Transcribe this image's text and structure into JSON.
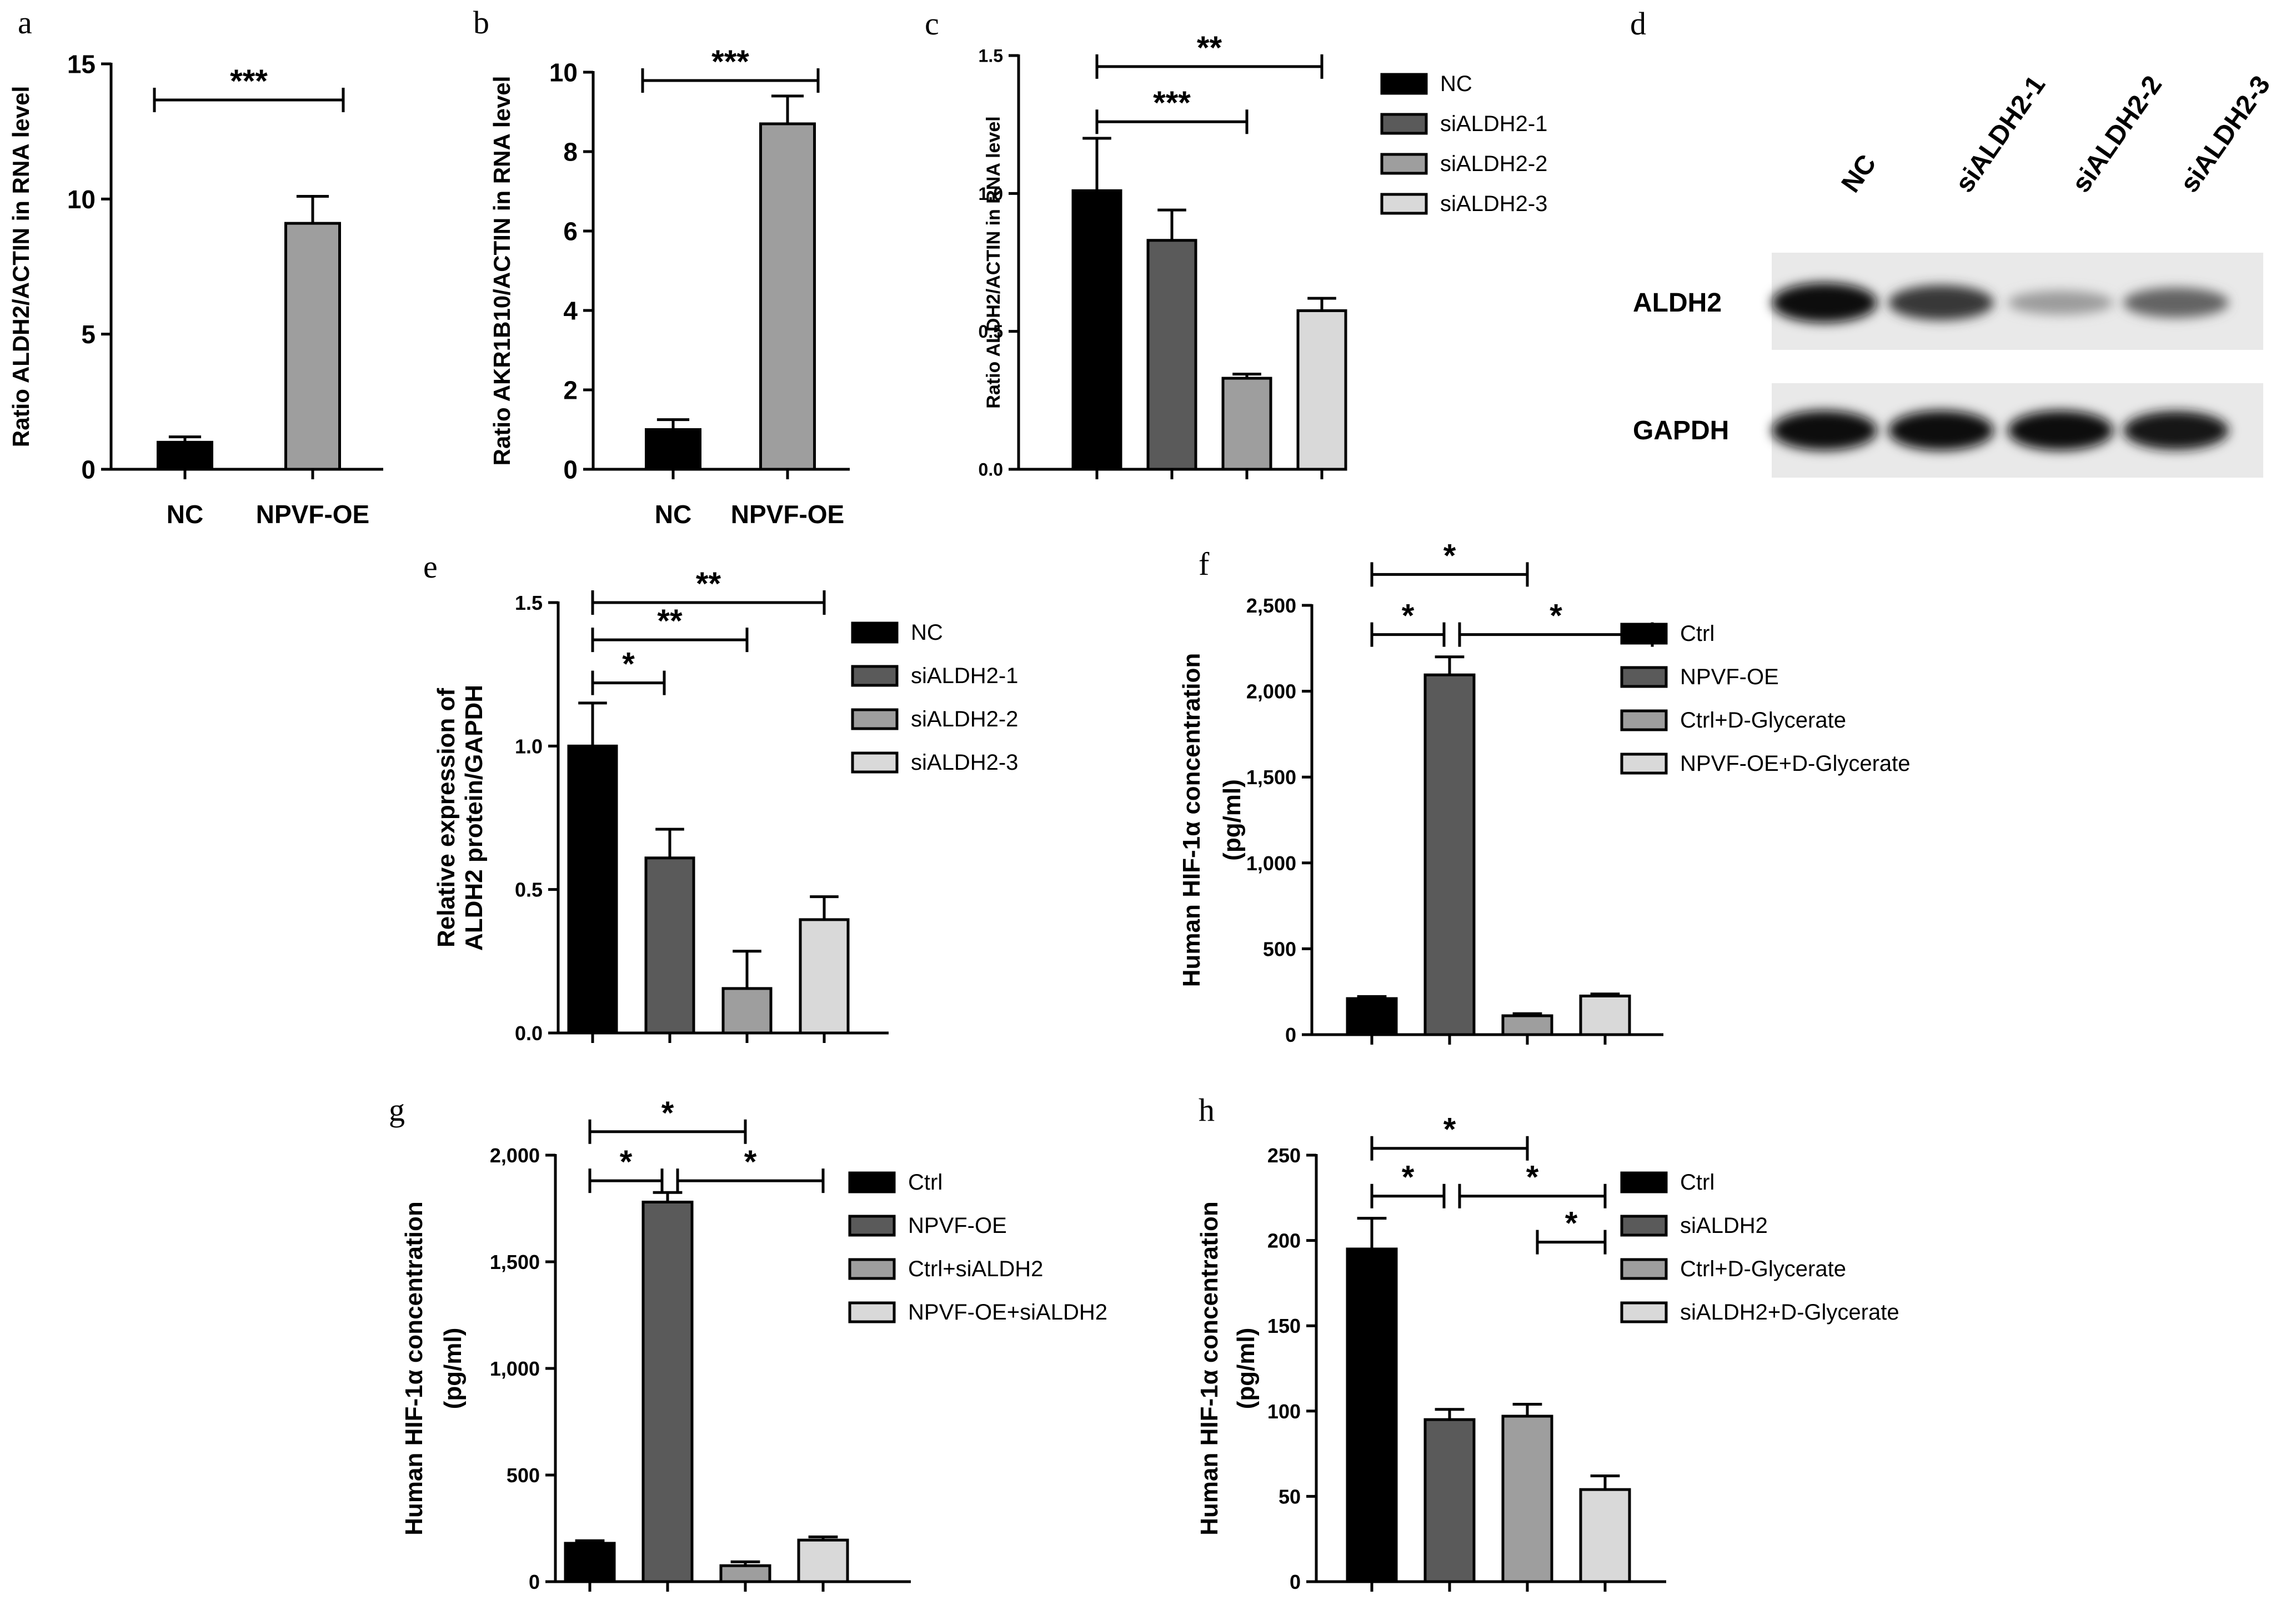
{
  "figure": {
    "colors": {
      "black": "#000000",
      "dark_gray": "#5a5a5a",
      "mid_gray": "#9e9e9e",
      "light_gray": "#d9d9d9"
    }
  },
  "chart_data": [
    {
      "panel": "a",
      "type": "bar",
      "categories": [
        "NC",
        "NPVF-OE"
      ],
      "values": [
        1.0,
        9.1
      ],
      "errors": [
        0.2,
        1.0
      ],
      "colors": [
        "#000000",
        "#9e9e9e"
      ],
      "ylabel": "Ratio ALDH2/ACTIN in RNA level",
      "ylim": [
        0,
        15
      ],
      "yticks": [
        "0",
        "5",
        "10",
        "15"
      ],
      "yticks_values": [
        0,
        5,
        10,
        15
      ],
      "xtick_labels": true,
      "brackets": [
        {
          "from": 0,
          "to": 1,
          "label": "***"
        }
      ]
    },
    {
      "panel": "b",
      "type": "bar",
      "categories": [
        "NC",
        "NPVF-OE"
      ],
      "values": [
        1.0,
        8.7
      ],
      "errors": [
        0.25,
        0.7
      ],
      "colors": [
        "#000000",
        "#9e9e9e"
      ],
      "ylabel": "Ratio AKR1B10/ACTIN in RNA level",
      "ylim": [
        0,
        10
      ],
      "yticks": [
        "0",
        "2",
        "4",
        "6",
        "8",
        "10"
      ],
      "yticks_values": [
        0,
        2,
        4,
        6,
        8,
        10
      ],
      "xtick_labels": true,
      "brackets": [
        {
          "from": 0,
          "to": 1,
          "label": "***"
        }
      ]
    },
    {
      "panel": "c",
      "type": "bar",
      "categories": [
        "NC",
        "siALDH2-1",
        "siALDH2-2",
        "siALDH2-3"
      ],
      "values": [
        1.01,
        0.83,
        0.33,
        0.575
      ],
      "errors": [
        0.19,
        0.11,
        0.015,
        0.045
      ],
      "colors": [
        "#000000",
        "#5a5a5a",
        "#9e9e9e",
        "#d9d9d9"
      ],
      "ylabel": "Ratio ALDH2/ACTIN in RNA level",
      "ylim": [
        0,
        1.5
      ],
      "yticks": [
        "0.0",
        "0.5",
        "1.0",
        "1.5"
      ],
      "yticks_values": [
        0,
        0.5,
        1.0,
        1.5
      ],
      "legend": [
        "NC",
        "siALDH2-1",
        "siALDH2-2",
        "siALDH2-3"
      ],
      "legend_position": "right",
      "brackets": [
        {
          "from": 0,
          "to": 3,
          "label": "**",
          "level": 1.46
        },
        {
          "from": 0,
          "to": 2,
          "label": "***",
          "level": 1.26
        }
      ]
    },
    {
      "panel": "e",
      "type": "bar",
      "categories": [
        "NC",
        "siALDH2-1",
        "siALDH2-2",
        "siALDH2-3"
      ],
      "values": [
        1.0,
        0.61,
        0.155,
        0.395
      ],
      "errors": [
        0.15,
        0.1,
        0.13,
        0.08
      ],
      "colors": [
        "#000000",
        "#5a5a5a",
        "#9e9e9e",
        "#d9d9d9"
      ],
      "ylabel": "Relative expression of ALDH2 protein/GAPDH",
      "ylabel_lines": [
        "Relative expression of",
        "ALDH2 protein/GAPDH"
      ],
      "ylim": [
        0,
        1.5
      ],
      "yticks": [
        "0.0",
        "0.5",
        "1.0",
        "1.5"
      ],
      "yticks_values": [
        0,
        0.5,
        1.0,
        1.5
      ],
      "legend": [
        "NC",
        "siALDH2-1",
        "siALDH2-2",
        "siALDH2-3"
      ],
      "legend_position": "right",
      "brackets": [
        {
          "from": 0,
          "to": 3,
          "label": "**",
          "level": 1.5
        },
        {
          "from": 0,
          "to": 2,
          "label": "**",
          "level": 1.37
        },
        {
          "from": 0,
          "to": 1,
          "label": "*",
          "level": 1.22
        }
      ]
    },
    {
      "panel": "f",
      "type": "bar",
      "categories": [
        "Ctrl",
        "NPVF-OE",
        "Ctrl+D-Glycerate",
        "NPVF-OE+D-Glycerate"
      ],
      "values": [
        210,
        2095,
        110,
        225
      ],
      "errors": [
        12,
        105,
        12,
        12
      ],
      "colors": [
        "#000000",
        "#5a5a5a",
        "#9e9e9e",
        "#d9d9d9"
      ],
      "ylabel": "Human HIF-1α concentration (pg/ml)",
      "ylabel_lines": [
        "Human HIF-1α concentration",
        "(pg/ml)"
      ],
      "ylim": [
        0,
        2500
      ],
      "yticks": [
        "0",
        "500",
        "1,000",
        "1,500",
        "2,000",
        "2,500"
      ],
      "yticks_values": [
        0,
        500,
        1000,
        1500,
        2000,
        2500
      ],
      "legend": [
        "Ctrl",
        "NPVF-OE",
        "Ctrl+D-Glycerate",
        "NPVF-OE+D-Glycerate"
      ],
      "legend_position": "right",
      "brackets": [
        {
          "from": 0,
          "to": 2,
          "label": "*",
          "level": 2680
        },
        {
          "from": 0,
          "to": 1,
          "label": "*",
          "level": 2330
        },
        {
          "from": 1,
          "to": 4,
          "label": "*",
          "level": 2330
        }
      ]
    },
    {
      "panel": "g",
      "type": "bar",
      "categories": [
        "Ctrl",
        "NPVF-OE",
        "Ctrl+siALDH2",
        "NPVF-OE+siALDH2"
      ],
      "values": [
        180,
        1780,
        75,
        195
      ],
      "errors": [
        12,
        45,
        18,
        15
      ],
      "colors": [
        "#000000",
        "#5a5a5a",
        "#9e9e9e",
        "#d9d9d9"
      ],
      "ylabel": "Human HIF-1α concentration (pg/ml)",
      "ylabel_lines": [
        "Human HIF-1α concentration",
        "(pg/ml)"
      ],
      "ylim": [
        0,
        2000
      ],
      "yticks": [
        "0",
        "500",
        "1,000",
        "1,500",
        "2,000"
      ],
      "yticks_values": [
        0,
        500,
        1000,
        1500,
        2000
      ],
      "legend": [
        "Ctrl",
        "NPVF-OE",
        "Ctrl+siALDH2",
        "NPVF-OE+siALDH2"
      ],
      "legend_position": "right",
      "brackets": [
        {
          "from": 0,
          "to": 2,
          "label": "*",
          "level": 2110
        },
        {
          "from": 0,
          "to": 1,
          "label": "*",
          "level": 1880
        },
        {
          "from": 1,
          "to": 3,
          "label": "*",
          "level": 1880
        }
      ]
    },
    {
      "panel": "h",
      "type": "bar",
      "categories": [
        "Ctrl",
        "siALDH2",
        "Ctrl+D-Glycerate",
        "siALDH2+D-Glycerate"
      ],
      "values": [
        195,
        95,
        97,
        54
      ],
      "errors": [
        18,
        6,
        7,
        8
      ],
      "colors": [
        "#000000",
        "#5a5a5a",
        "#9e9e9e",
        "#d9d9d9"
      ],
      "ylabel": "Human HIF-1α concentration (pg/ml)",
      "ylabel_lines": [
        "Human HIF-1α concentration",
        "(pg/ml)"
      ],
      "ylim": [
        0,
        250
      ],
      "yticks": [
        "0",
        "50",
        "100",
        "150",
        "200",
        "250"
      ],
      "yticks_values": [
        0,
        50,
        100,
        150,
        200,
        250
      ],
      "legend": [
        "Ctrl",
        "siALDH2",
        "Ctrl+D-Glycerate",
        "siALDH2+D-Glycerate"
      ],
      "legend_position": "right",
      "brackets": [
        {
          "from": 0,
          "to": 2,
          "label": "*",
          "level": 254
        },
        {
          "from": 0,
          "to": 1,
          "label": "*",
          "level": 226
        },
        {
          "from": 1,
          "to": 3,
          "label": "*",
          "level": 226
        },
        {
          "from": 2,
          "to": 3,
          "label": "*",
          "level": 199
        }
      ]
    }
  ],
  "western_blot": {
    "panel": "d",
    "lanes": [
      "NC",
      "siALDH2-1",
      "siALDH2-2",
      "siALDH2-3"
    ],
    "rows": [
      {
        "label": "ALDH2",
        "intensities": [
          1.0,
          0.8,
          0.35,
          0.6
        ]
      },
      {
        "label": "GAPDH",
        "intensities": [
          1.0,
          1.0,
          1.0,
          0.95
        ]
      }
    ]
  }
}
